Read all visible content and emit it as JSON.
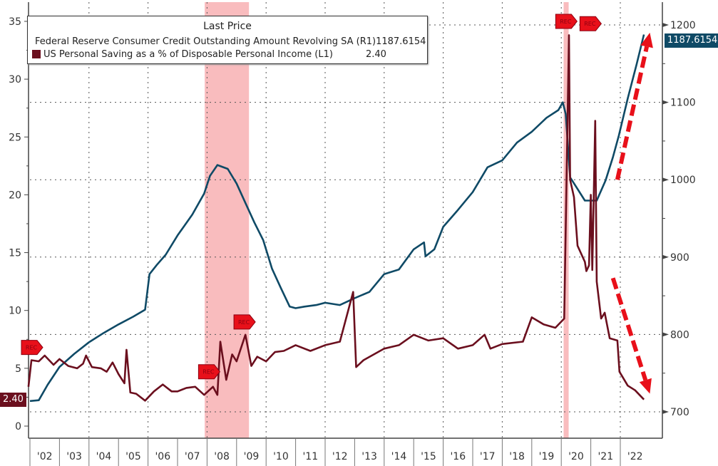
{
  "chart_data": {
    "type": "line",
    "legend_title": "Last Price",
    "legend_placement": "top-left",
    "x_tick_labels": [
      "'02",
      "'03",
      "'04",
      "'05",
      "'06",
      "'07",
      "'08",
      "'09",
      "'10",
      "'11",
      "'12",
      "'13",
      "'14",
      "'15",
      "'16",
      "'17",
      "'18",
      "'19",
      "'20",
      "'21",
      "'22"
    ],
    "x_range": [
      2002,
      2023
    ],
    "left_axis": {
      "range": [
        -1,
        36
      ],
      "ticks": [
        "0",
        "5",
        "10",
        "15",
        "20",
        "25",
        "30",
        "35"
      ]
    },
    "right_axis": {
      "range": [
        670,
        1230
      ],
      "ticks": [
        "700",
        "800",
        "900",
        "1000",
        "1100",
        "1200"
      ]
    },
    "recessions": [
      [
        2007.92,
        2009.42
      ],
      [
        2020.08,
        2020.25
      ]
    ],
    "recession_label": "REC",
    "rec_markers": [
      [
        2002.0,
        6.8
      ],
      [
        2008.0,
        4.7
      ],
      [
        2009.2,
        9.0
      ],
      [
        2020.1,
        35.0
      ],
      [
        2020.3,
        34.8
      ]
    ],
    "series": [
      {
        "name": "Federal Reserve Consumer Credit Outstanding Amount Revolving SA",
        "axis_code": "(R1)",
        "axis": "right",
        "last_value": "1187.6154",
        "color": "#0f4a66",
        "points": [
          [
            2002.0,
            714
          ],
          [
            2002.3,
            715
          ],
          [
            2002.6,
            735
          ],
          [
            2003.0,
            758
          ],
          [
            2003.5,
            775
          ],
          [
            2004.0,
            790
          ],
          [
            2004.5,
            802
          ],
          [
            2005.0,
            813
          ],
          [
            2005.5,
            823
          ],
          [
            2005.9,
            832
          ],
          [
            2006.05,
            878
          ],
          [
            2006.3,
            890
          ],
          [
            2006.6,
            903
          ],
          [
            2007.0,
            928
          ],
          [
            2007.5,
            955
          ],
          [
            2007.9,
            982
          ],
          [
            2008.1,
            1005
          ],
          [
            2008.35,
            1019
          ],
          [
            2008.7,
            1014
          ],
          [
            2009.0,
            995
          ],
          [
            2009.3,
            970
          ],
          [
            2009.6,
            945
          ],
          [
            2009.9,
            922
          ],
          [
            2010.2,
            885
          ],
          [
            2010.5,
            860
          ],
          [
            2010.8,
            836
          ],
          [
            2011.0,
            834
          ],
          [
            2011.3,
            836
          ],
          [
            2011.7,
            838
          ],
          [
            2012.0,
            841
          ],
          [
            2012.5,
            838
          ],
          [
            2013.0,
            847
          ],
          [
            2013.5,
            855
          ],
          [
            2014.0,
            878
          ],
          [
            2014.5,
            884
          ],
          [
            2015.0,
            910
          ],
          [
            2015.35,
            919
          ],
          [
            2015.4,
            901
          ],
          [
            2015.7,
            910
          ],
          [
            2016.0,
            939
          ],
          [
            2016.5,
            961
          ],
          [
            2017.0,
            984
          ],
          [
            2017.5,
            1016
          ],
          [
            2018.0,
            1025
          ],
          [
            2018.5,
            1048
          ],
          [
            2019.0,
            1062
          ],
          [
            2019.5,
            1080
          ],
          [
            2019.9,
            1090
          ],
          [
            2020.05,
            1100
          ],
          [
            2020.15,
            1085
          ],
          [
            2020.3,
            1003
          ],
          [
            2020.55,
            988
          ],
          [
            2020.8,
            973
          ],
          [
            2021.2,
            973
          ],
          [
            2021.5,
            999
          ],
          [
            2021.75,
            1029
          ],
          [
            2021.95,
            1057
          ],
          [
            2022.25,
            1105
          ],
          [
            2022.55,
            1149
          ],
          [
            2022.8,
            1187.6
          ]
        ]
      },
      {
        "name": "US Personal Saving as a % of Disposable Personal Income",
        "axis_code": "(L1)",
        "axis": "left",
        "last_value": "2.40",
        "color": "#6b0f1e",
        "points": [
          [
            2001.95,
            3.4
          ],
          [
            2002.05,
            5.7
          ],
          [
            2002.3,
            5.6
          ],
          [
            2002.5,
            6.1
          ],
          [
            2002.8,
            5.3
          ],
          [
            2003.0,
            5.8
          ],
          [
            2003.3,
            5.2
          ],
          [
            2003.6,
            5.0
          ],
          [
            2003.8,
            5.4
          ],
          [
            2003.9,
            6.1
          ],
          [
            2004.1,
            5.1
          ],
          [
            2004.4,
            5.0
          ],
          [
            2004.6,
            4.7
          ],
          [
            2004.8,
            5.5
          ],
          [
            2005.0,
            4.5
          ],
          [
            2005.2,
            3.7
          ],
          [
            2005.27,
            6.6
          ],
          [
            2005.4,
            2.9
          ],
          [
            2005.6,
            2.8
          ],
          [
            2005.9,
            2.2
          ],
          [
            2006.2,
            3.0
          ],
          [
            2006.5,
            3.6
          ],
          [
            2006.8,
            3.0
          ],
          [
            2007.0,
            3.0
          ],
          [
            2007.3,
            3.3
          ],
          [
            2007.6,
            3.4
          ],
          [
            2007.9,
            2.7
          ],
          [
            2008.2,
            3.4
          ],
          [
            2008.35,
            2.7
          ],
          [
            2008.45,
            7.3
          ],
          [
            2008.65,
            4.0
          ],
          [
            2008.85,
            6.2
          ],
          [
            2009.0,
            5.6
          ],
          [
            2009.3,
            7.9
          ],
          [
            2009.5,
            5.2
          ],
          [
            2009.7,
            6.0
          ],
          [
            2010.0,
            5.6
          ],
          [
            2010.3,
            6.4
          ],
          [
            2010.6,
            6.5
          ],
          [
            2011.0,
            7.0
          ],
          [
            2011.5,
            6.5
          ],
          [
            2012.0,
            7.0
          ],
          [
            2012.5,
            7.3
          ],
          [
            2012.95,
            11.6
          ],
          [
            2013.05,
            5.1
          ],
          [
            2013.3,
            5.7
          ],
          [
            2014.0,
            6.7
          ],
          [
            2014.5,
            7.0
          ],
          [
            2015.0,
            7.9
          ],
          [
            2015.5,
            7.4
          ],
          [
            2016.0,
            7.6
          ],
          [
            2016.5,
            6.7
          ],
          [
            2017.0,
            7.0
          ],
          [
            2017.4,
            7.9
          ],
          [
            2017.6,
            6.7
          ],
          [
            2018.0,
            7.1
          ],
          [
            2018.7,
            7.3
          ],
          [
            2019.0,
            9.4
          ],
          [
            2019.4,
            8.8
          ],
          [
            2019.8,
            8.5
          ],
          [
            2020.1,
            9.3
          ],
          [
            2020.26,
            33.8
          ],
          [
            2020.3,
            21.3
          ],
          [
            2020.43,
            19.8
          ],
          [
            2020.55,
            15.6
          ],
          [
            2020.8,
            14.2
          ],
          [
            2020.85,
            13.4
          ],
          [
            2020.94,
            13.9
          ],
          [
            2021.0,
            20.0
          ],
          [
            2021.05,
            13.5
          ],
          [
            2021.15,
            26.4
          ],
          [
            2021.2,
            12.5
          ],
          [
            2021.35,
            9.3
          ],
          [
            2021.47,
            9.8
          ],
          [
            2021.64,
            7.6
          ],
          [
            2021.9,
            7.4
          ],
          [
            2021.97,
            4.7
          ],
          [
            2022.25,
            3.5
          ],
          [
            2022.5,
            3.1
          ],
          [
            2022.8,
            2.3
          ]
        ]
      }
    ],
    "annotations": [
      {
        "type": "arrow",
        "direction": "up",
        "color": "#e8101a",
        "from": [
          2021.9,
          1000
        ],
        "to": [
          2023.0,
          1190
        ],
        "axis": "right"
      },
      {
        "type": "arrow",
        "direction": "down",
        "color": "#e8101a",
        "from": [
          2021.75,
          12.8
        ],
        "to": [
          2023.0,
          2.8
        ],
        "axis": "left"
      }
    ]
  }
}
